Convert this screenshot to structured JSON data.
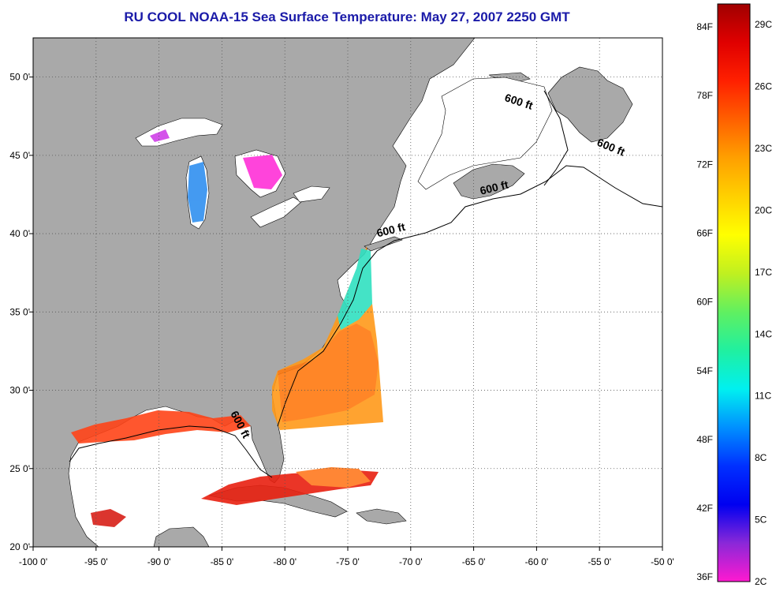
{
  "title": "RU COOL  NOAA-15  Sea Surface Temperature:  May 27, 2007 2250 GMT",
  "map": {
    "lon_range": [
      -100,
      -50
    ],
    "lat_range": [
      20,
      52.5
    ],
    "lon_ticks": [
      {
        "value": -100,
        "label": "-100 0'"
      },
      {
        "value": -95,
        "label": "-95 0'"
      },
      {
        "value": -90,
        "label": "-90 0'"
      },
      {
        "value": -85,
        "label": "-85 0'"
      },
      {
        "value": -80,
        "label": "-80 0'"
      },
      {
        "value": -75,
        "label": "-75 0'"
      },
      {
        "value": -70,
        "label": "-70 0'"
      },
      {
        "value": -65,
        "label": "-65 0'"
      },
      {
        "value": -60,
        "label": "-60 0'"
      },
      {
        "value": -55,
        "label": "-55 0'"
      },
      {
        "value": -50,
        "label": "-50 0'"
      }
    ],
    "lat_ticks": [
      {
        "value": 20,
        "label": "20 0'"
      },
      {
        "value": 25,
        "label": "25 0'"
      },
      {
        "value": 30,
        "label": "30 0'"
      },
      {
        "value": 35,
        "label": "35 0'"
      },
      {
        "value": 40,
        "label": "40 0'"
      },
      {
        "value": 45,
        "label": "45 0'"
      },
      {
        "value": 50,
        "label": "50 0'"
      }
    ],
    "grid": true,
    "contour_labels": [
      {
        "text": "600 ft",
        "lon": -61.5,
        "lat": 48.2
      },
      {
        "text": "600 ft",
        "lon": -54.2,
        "lat": 45.3
      },
      {
        "text": "600 ft",
        "lon": -63.3,
        "lat": 42.7
      },
      {
        "text": "600 ft",
        "lon": -71.5,
        "lat": 40.0
      },
      {
        "text": "600 ft",
        "lon": -83.8,
        "lat": 27.7
      }
    ],
    "colors": {
      "land": "#a9a9a9",
      "ocean": "#ffffff",
      "frame": "#000000"
    }
  },
  "colorbar": {
    "fahrenheit_labels": [
      "84F",
      "78F",
      "72F",
      "66F",
      "60F",
      "54F",
      "48F",
      "42F",
      "36F"
    ],
    "celsius_labels": [
      "29C",
      "26C",
      "23C",
      "20C",
      "17C",
      "14C",
      "11C",
      "8C",
      "5C",
      "2C"
    ],
    "celsius_range": [
      2,
      30
    ],
    "stops": [
      "#ff19d0",
      "#8a28d8",
      "#0000f0",
      "#0030ff",
      "#0090ff",
      "#00f0f0",
      "#20f0a0",
      "#60f060",
      "#c0f020",
      "#ffff00",
      "#ffd000",
      "#ffa000",
      "#ff6000",
      "#ff2000",
      "#e00000",
      "#a00000"
    ]
  }
}
